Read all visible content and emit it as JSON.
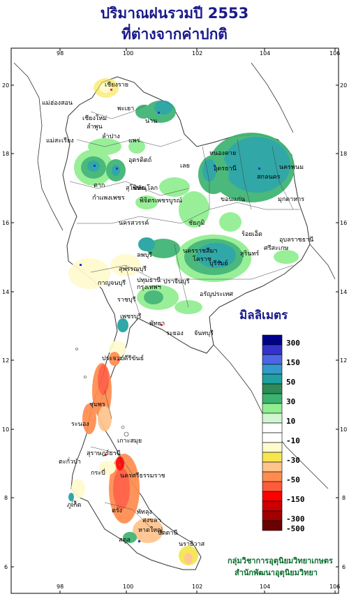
{
  "title": {
    "line1": "ปริมาณฝนรวมปี  2553",
    "line2": "ที่ต่างจากค่าปกติ"
  },
  "axes": {
    "lon_ticks": [
      "98",
      "100",
      "102",
      "104",
      "106"
    ],
    "lat_ticks": [
      "20",
      "18",
      "16",
      "14",
      "12",
      "10",
      "8",
      "6"
    ]
  },
  "legend": {
    "title": "มิลลิเมตร",
    "classes": [
      {
        "label": "300",
        "color": "#00008b"
      },
      {
        "label": "",
        "color": "#3333cc"
      },
      {
        "label": "150",
        "color": "#4d66e6"
      },
      {
        "label": "",
        "color": "#3399cc"
      },
      {
        "label": "50",
        "color": "#20a0a0"
      },
      {
        "label": "",
        "color": "#2e8b57"
      },
      {
        "label": "30",
        "color": "#3cb371"
      },
      {
        "label": "",
        "color": "#90ee90"
      },
      {
        "label": "10",
        "color": "#d0f5d0"
      },
      {
        "label": "",
        "color": "#ffffff"
      },
      {
        "label": "-10",
        "color": "#ffffff"
      },
      {
        "label": "",
        "color": "#fffacd"
      },
      {
        "label": "-30",
        "color": "#f5e64d"
      },
      {
        "label": "",
        "color": "#ffc38c"
      },
      {
        "label": "-50",
        "color": "#ff8c4d"
      },
      {
        "label": "",
        "color": "#ff5a3c"
      },
      {
        "label": "-150",
        "color": "#ff0000"
      },
      {
        "label": "",
        "color": "#cc0000"
      },
      {
        "label": "-300",
        "color": "#a00000"
      },
      {
        "label": "-500",
        "color": "#6b0000"
      }
    ]
  },
  "places": [
    "เชียงราย",
    "แม่ฮ่องสอน",
    "เชียงใหม่",
    "ลำพูน",
    "พะเยา",
    "น่าน",
    "ลำปาง",
    "แพร่",
    "แม่สะเรียง",
    "หนองคาย",
    "อุดรธานี",
    "นครพนม",
    "อุตรดิตถ์",
    "เลย",
    "สกลนคร",
    "ตาก",
    "สุโขทัย",
    "พิษณุโลก",
    "ขอนแก่น",
    "มุกดาหาร",
    "กำแพงเพชร",
    "พิจิตร",
    "เพชรบูรณ์",
    "นครสวรรค์",
    "ชัยภูมิ",
    "ร้อยเอ็ด",
    "อุบลราชธานี",
    "ลพบุรี",
    "นครราชสีมา",
    "โคราช",
    "สุรินทร์",
    "ศรีสะเกษ",
    "สุพรรณบุรี",
    "บุรีรัมย์",
    "กาญจนบุรี",
    "ปทุมธานี",
    "ปราจีนบุรี",
    "กรุงเทพฯ",
    "อรัญประเทศ",
    "ราชบุรี",
    "เพชรบุรี",
    "พัทยา",
    "ระยอง",
    "จันทบุรี",
    "ประจวบคีรีขันธ์",
    "ชุมพร",
    "ระนอง",
    "เกาะสมุย",
    "สุราษฎร์ธานี",
    "ตะกั่วป่า",
    "ภูเก็ต",
    "นครศรีธรรมราช",
    "กระบี่",
    "ตรัง",
    "พัทลุง",
    "สงขลา",
    "หาดใหญ่",
    "ปัตตานี",
    "นราธิวาส",
    "สตูล"
  ],
  "credit": {
    "line1": "กลุ่มวิชาการอุตุนิยมวิทยาเกษตร",
    "line2": "สำนักพัฒนาอุตุนิยมวิทยา"
  }
}
